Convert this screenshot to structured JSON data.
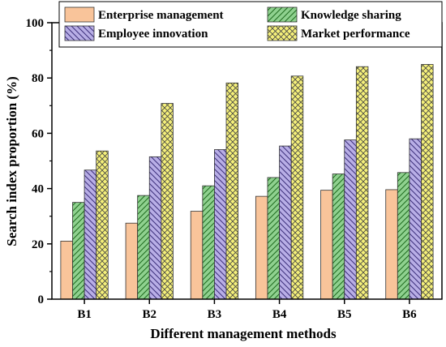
{
  "chart_data": {
    "type": "bar",
    "xlabel": "Different management methods",
    "ylabel": "Search index proportion (%)",
    "ylim": [
      0,
      100
    ],
    "yticks": [
      0,
      20,
      40,
      60,
      80,
      100
    ],
    "grid": false,
    "legend_position": "top",
    "categories": [
      "B1",
      "B2",
      "B3",
      "B4",
      "B5",
      "B6"
    ],
    "series": [
      {
        "name": "Enterprise management",
        "color": "#f9c49a",
        "pattern": "solid",
        "values": [
          21.0,
          27.5,
          31.8,
          37.2,
          39.4,
          39.6
        ]
      },
      {
        "name": "Knowledge sharing",
        "color": "#8fd18f",
        "pattern": "diagonal",
        "values": [
          35.0,
          37.5,
          41.0,
          44.0,
          45.3,
          45.8
        ]
      },
      {
        "name": "Employee innovation",
        "color": "#b8aee6",
        "pattern": "diagonal",
        "values": [
          46.7,
          51.5,
          54.1,
          55.4,
          57.6,
          58.0
        ]
      },
      {
        "name": "Market performance",
        "color": "#f5f07a",
        "pattern": "crosshatch",
        "values": [
          53.6,
          70.8,
          78.2,
          80.7,
          84.1,
          84.9
        ]
      }
    ]
  }
}
